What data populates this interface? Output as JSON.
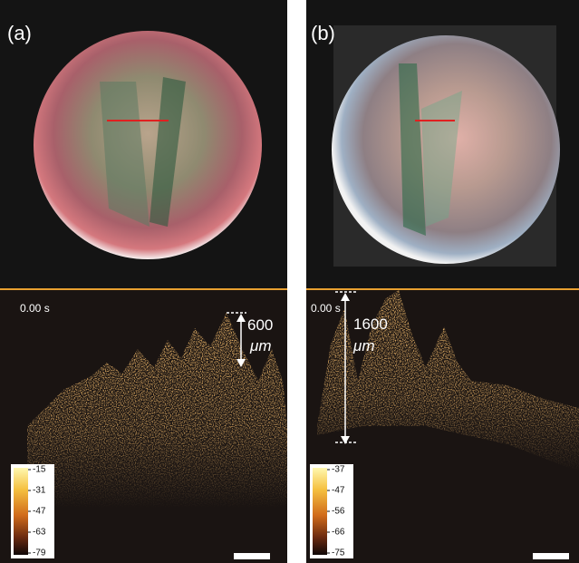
{
  "panels": [
    {
      "label": "(a)",
      "time": "0.00 s",
      "measure": {
        "value": 600,
        "unit": "μm"
      },
      "colorbar_ticks": [
        -15,
        -31,
        -47,
        -63,
        -79
      ]
    },
    {
      "label": "(b)",
      "time": "0.00 s",
      "measure": {
        "value": 1600,
        "unit": "μm"
      },
      "colorbar_ticks": [
        -37,
        -47,
        -56,
        -66,
        -75
      ]
    }
  ]
}
